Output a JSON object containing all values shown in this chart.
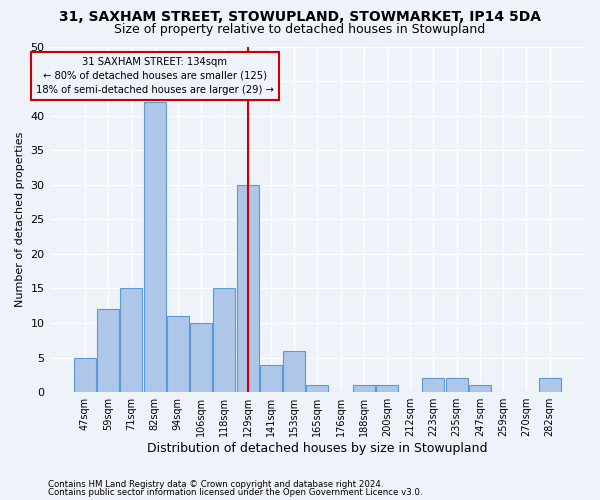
{
  "title1": "31, SAXHAM STREET, STOWUPLAND, STOWMARKET, IP14 5DA",
  "title2": "Size of property relative to detached houses in Stowupland",
  "xlabel": "Distribution of detached houses by size in Stowupland",
  "ylabel": "Number of detached properties",
  "categories": [
    "47sqm",
    "59sqm",
    "71sqm",
    "82sqm",
    "94sqm",
    "106sqm",
    "118sqm",
    "129sqm",
    "141sqm",
    "153sqm",
    "165sqm",
    "176sqm",
    "188sqm",
    "200sqm",
    "212sqm",
    "223sqm",
    "235sqm",
    "247sqm",
    "259sqm",
    "270sqm",
    "282sqm"
  ],
  "values": [
    5,
    12,
    15,
    42,
    11,
    10,
    15,
    30,
    4,
    6,
    1,
    0,
    1,
    1,
    0,
    2,
    2,
    1,
    0,
    0,
    2
  ],
  "bar_color": "#aec6e8",
  "bar_edge_color": "#5b9bd5",
  "vline_x_index": 7,
  "vline_color": "#cc0000",
  "annotation_text": "31 SAXHAM STREET: 134sqm\n← 80% of detached houses are smaller (125)\n18% of semi-detached houses are larger (29) →",
  "annotation_box_color": "#cc0000",
  "ylim": [
    0,
    50
  ],
  "yticks": [
    0,
    5,
    10,
    15,
    20,
    25,
    30,
    35,
    40,
    45,
    50
  ],
  "footer1": "Contains HM Land Registry data © Crown copyright and database right 2024.",
  "footer2": "Contains public sector information licensed under the Open Government Licence v3.0.",
  "bg_color": "#eef2f9",
  "grid_color": "#ffffff",
  "title1_fontsize": 10,
  "title2_fontsize": 9,
  "tick_fontsize": 7,
  "ylabel_fontsize": 8,
  "xlabel_fontsize": 9
}
